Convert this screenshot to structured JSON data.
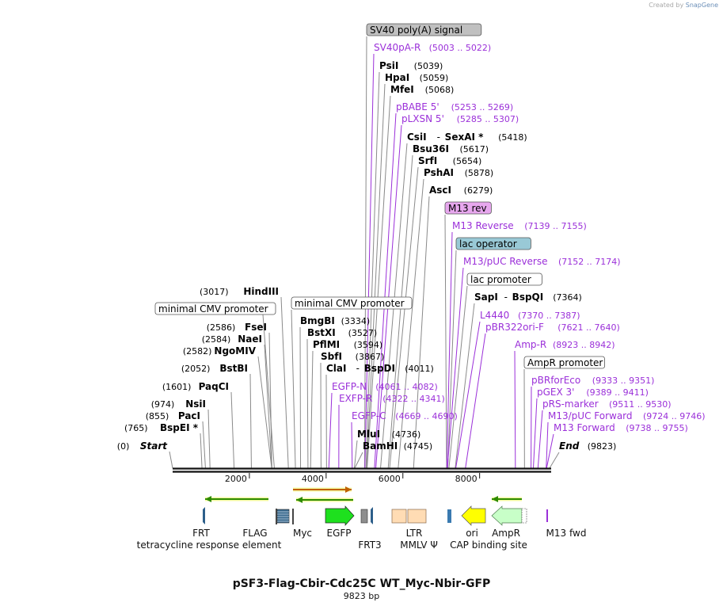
{
  "app": {
    "credit_prefix": "Created by",
    "credit_brand": "SnapGene"
  },
  "plasmid": {
    "name": "pSF3-Flag-Cbir-Cdc25C WT_Myc-Nbir-GFP",
    "length_label": "9823 bp",
    "length": 9823
  },
  "axis": {
    "ticks": [
      {
        "pos": 2000,
        "label": "2000"
      },
      {
        "pos": 4000,
        "label": "4000"
      },
      {
        "pos": 6000,
        "label": "6000"
      },
      {
        "pos": 8000,
        "label": "8000"
      }
    ]
  },
  "colors": {
    "enzyme": "#000000",
    "primer": "#9b30d9",
    "leader": "#8a8a8a",
    "primer_leader": "#9b30d9",
    "egfp": "#1ee01e",
    "ori": "#ffff00",
    "ampr": "#c8ffc8",
    "ltr": "#ffdcb4",
    "arrow_green": "#2e8b00",
    "arrow_orange": "#c06000",
    "sv40_box": "#c0c0c0",
    "m13rev_box": "#e7a7ee",
    "lacop_box": "#99c9d6"
  },
  "labels_right": [
    {
      "name": "SV40 poly(A) signal",
      "coords": "",
      "pos": 5003,
      "kind": "box",
      "fill": "#c0c0c0"
    },
    {
      "name": "SV40pA-R",
      "coords": "(5003 .. 5022)",
      "pos": 5010,
      "kind": "primer"
    },
    {
      "name": "PsiI",
      "coords": "(5039)",
      "pos": 5039,
      "kind": "enzyme"
    },
    {
      "name": "HpaI",
      "coords": "(5059)",
      "pos": 5059,
      "kind": "enzyme"
    },
    {
      "name": "MfeI",
      "coords": "(5068)",
      "pos": 5068,
      "kind": "enzyme"
    },
    {
      "name": "pBABE 5'",
      "coords": "(5253 .. 5269)",
      "pos": 5260,
      "kind": "primer"
    },
    {
      "name": "pLXSN 5'",
      "coords": "(5285 .. 5307)",
      "pos": 5295,
      "kind": "primer"
    },
    {
      "name": "CsiI",
      "name2": "SexAI *",
      "coords": "(5418)",
      "pos": 5418,
      "kind": "enzyme"
    },
    {
      "name": "Bsu36I",
      "coords": "(5617)",
      "pos": 5617,
      "kind": "enzyme"
    },
    {
      "name": "SrfI",
      "coords": "(5654)",
      "pos": 5654,
      "kind": "enzyme"
    },
    {
      "name": "PshAI",
      "coords": "(5878)",
      "pos": 5878,
      "kind": "enzyme"
    },
    {
      "name": "AscI",
      "coords": "(6279)",
      "pos": 6279,
      "kind": "enzyme"
    },
    {
      "name": "M13 rev",
      "coords": "",
      "pos": 7139,
      "kind": "box",
      "fill": "#e7a7ee"
    },
    {
      "name": "M13 Reverse",
      "coords": "(7139 .. 7155)",
      "pos": 7145,
      "kind": "primer"
    },
    {
      "name": "lac operator",
      "coords": "",
      "pos": 7170,
      "kind": "box",
      "fill": "#99c9d6"
    },
    {
      "name": "M13/pUC Reverse",
      "coords": "(7152 .. 7174)",
      "pos": 7160,
      "kind": "primer"
    },
    {
      "name": "lac promoter",
      "coords": "",
      "pos": 7200,
      "kind": "box",
      "fill": "#ffffff"
    },
    {
      "name": "SapI",
      "name2": "BspQI",
      "coords": "(7364)",
      "pos": 7364,
      "kind": "enzyme"
    },
    {
      "name": "L4440",
      "coords": "(7370 .. 7387)",
      "pos": 7378,
      "kind": "primer"
    },
    {
      "name": "pBR322ori-F",
      "coords": "(7621 .. 7640)",
      "pos": 7630,
      "kind": "primer"
    },
    {
      "name": "Amp-R",
      "coords": "(8923 .. 8942)",
      "pos": 8932,
      "kind": "primer"
    },
    {
      "name": "AmpR promoter",
      "coords": "",
      "pos": 9170,
      "kind": "box",
      "fill": "#ffffff"
    },
    {
      "name": "pBRforEco",
      "coords": "(9333 .. 9351)",
      "pos": 9340,
      "kind": "primer"
    },
    {
      "name": "pGEX 3'",
      "coords": "(9389 .. 9411)",
      "pos": 9400,
      "kind": "primer"
    },
    {
      "name": "pRS-marker",
      "coords": "(9511 .. 9530)",
      "pos": 9520,
      "kind": "primer"
    },
    {
      "name": "M13/pUC Forward",
      "coords": "(9724 .. 9746)",
      "pos": 9735,
      "kind": "primer"
    },
    {
      "name": "M13 Forward",
      "coords": "(9738 .. 9755)",
      "pos": 9745,
      "kind": "primer"
    },
    {
      "name": "End",
      "coords": "(9823)",
      "pos": 9823,
      "kind": "end"
    }
  ],
  "labels_mid": [
    {
      "name": "minimal CMV promoter",
      "coords": "",
      "pos": 3200,
      "kind": "box",
      "fill": "#ffffff"
    },
    {
      "name": "BmgBI",
      "coords": "(3334)",
      "pos": 3334,
      "kind": "enzyme"
    },
    {
      "name": "BstXI",
      "coords": "(3527)",
      "pos": 3527,
      "kind": "enzyme"
    },
    {
      "name": "PflMI",
      "coords": "(3594)",
      "pos": 3594,
      "kind": "enzyme"
    },
    {
      "name": "SbfI",
      "coords": "(3867)",
      "pos": 3867,
      "kind": "enzyme"
    },
    {
      "name": "ClaI",
      "name2": "BspDI",
      "coords": "(4011)",
      "pos": 4011,
      "kind": "enzyme"
    },
    {
      "name": "EGFP-N",
      "coords": "(4061 .. 4082)",
      "pos": 4070,
      "kind": "primer"
    },
    {
      "name": "EXFP-R",
      "coords": "(4322 .. 4341)",
      "pos": 4330,
      "kind": "primer"
    },
    {
      "name": "EGFP-C",
      "coords": "(4669 .. 4690)",
      "pos": 4680,
      "kind": "primer"
    },
    {
      "name": "MluI",
      "coords": "(4736)",
      "pos": 4736,
      "kind": "enzyme"
    },
    {
      "name": "BamHI",
      "coords": "(4745)",
      "pos": 4745,
      "kind": "enzyme"
    }
  ],
  "labels_left": [
    {
      "name": "HindIII",
      "coords": "(3017)",
      "pos": 3017,
      "kind": "enzyme"
    },
    {
      "name": "minimal CMV promoter",
      "coords": "",
      "pos": 2650,
      "kind": "box",
      "fill": "#ffffff"
    },
    {
      "name": "FseI",
      "coords": "(2586)",
      "pos": 2586,
      "kind": "enzyme"
    },
    {
      "name": "NaeI",
      "coords": "(2584)",
      "pos": 2584,
      "kind": "enzyme"
    },
    {
      "name": "NgoMIV",
      "coords": "(2582)",
      "pos": 2582,
      "kind": "enzyme"
    },
    {
      "name": "BstBI",
      "coords": "(2052)",
      "pos": 2052,
      "kind": "enzyme"
    },
    {
      "name": "PaqCI",
      "coords": "(1601)",
      "pos": 1601,
      "kind": "enzyme"
    },
    {
      "name": "NsiI",
      "coords": "(974)",
      "pos": 974,
      "kind": "enzyme"
    },
    {
      "name": "PacI",
      "coords": "(855)",
      "pos": 855,
      "kind": "enzyme"
    },
    {
      "name": "BspEI *",
      "coords": "(765)",
      "pos": 765,
      "kind": "enzyme"
    },
    {
      "name": "Start",
      "coords": "(0)",
      "pos": 0,
      "kind": "start"
    }
  ],
  "features": [
    {
      "name": "FRT",
      "pos": 850,
      "kind": "frt"
    },
    {
      "name": "tetracycline response element",
      "pos": 2800,
      "kind": "tre"
    },
    {
      "name": "FLAG",
      "pos": 2700,
      "kind": "flag"
    },
    {
      "name": "Myc",
      "pos": 3260,
      "kind": "myc"
    },
    {
      "name": "EGFP",
      "start": 4061,
      "end": 4780,
      "kind": "egfp"
    },
    {
      "name": "FRT3",
      "start": 5050,
      "end": 5270,
      "kind": "frt3"
    },
    {
      "name": "LTR",
      "start": 5600,
      "end": 6580,
      "kind": "ltr"
    },
    {
      "name": "MMLV Ψ",
      "pos": 6200,
      "kind": "label_only"
    },
    {
      "name": "CAP binding site",
      "pos": 7130,
      "kind": "cap"
    },
    {
      "name": "ori",
      "start": 7450,
      "end": 8050,
      "kind": "ori"
    },
    {
      "name": "AmpR",
      "start": 8440,
      "end": 9200,
      "kind": "ampr"
    },
    {
      "name": "M13 fwd",
      "pos": 9745,
      "kind": "m13fwd"
    }
  ]
}
